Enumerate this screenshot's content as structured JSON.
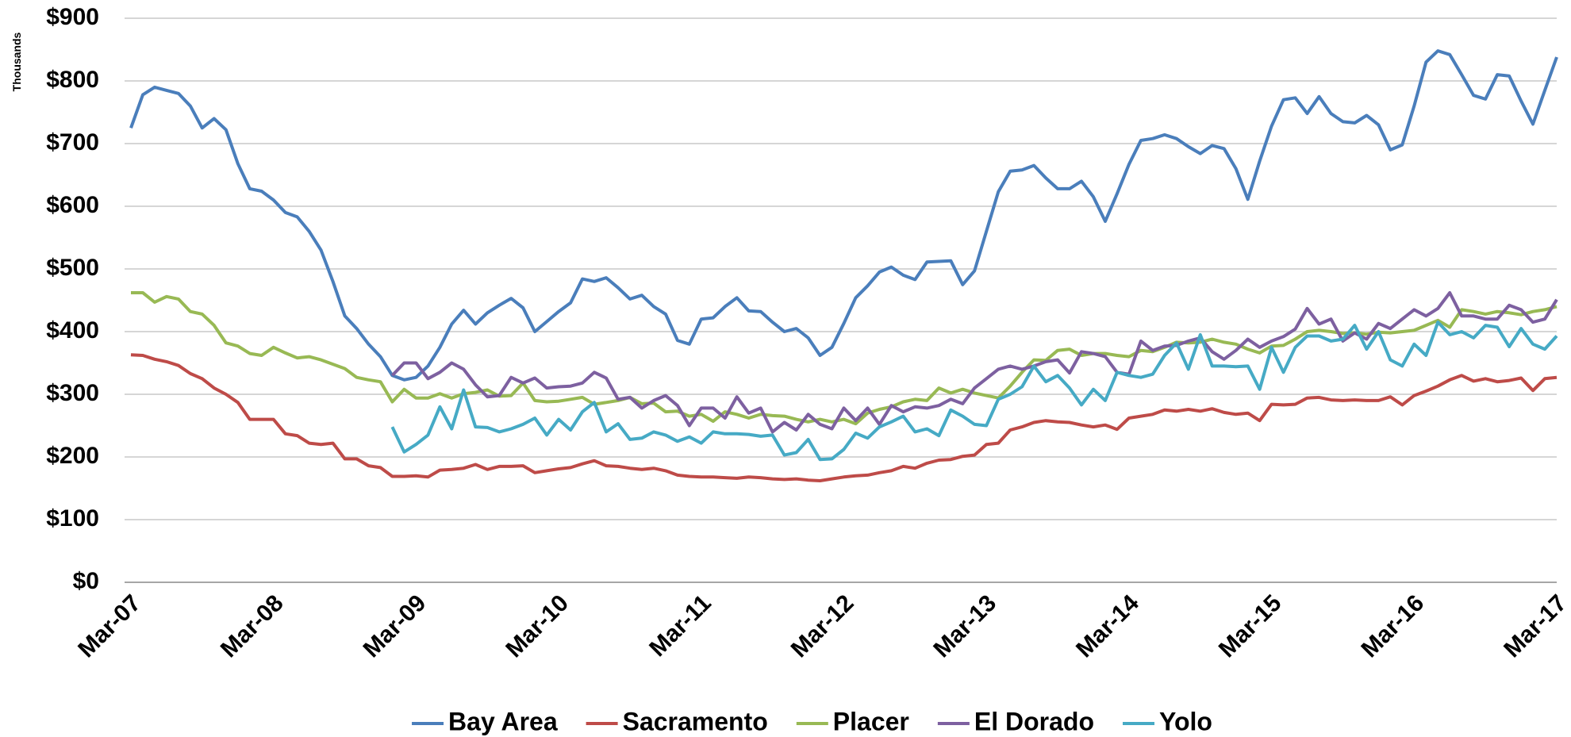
{
  "chart_data": {
    "type": "line",
    "y_axis_label": "Thousands",
    "categories": [
      "Mar-07",
      null,
      null,
      null,
      null,
      null,
      null,
      null,
      null,
      null,
      null,
      null,
      "Mar-08",
      null,
      null,
      null,
      null,
      null,
      null,
      null,
      null,
      null,
      null,
      null,
      "Mar-09",
      null,
      null,
      null,
      null,
      null,
      null,
      null,
      null,
      null,
      null,
      null,
      "Mar-10",
      null,
      null,
      null,
      null,
      null,
      null,
      null,
      null,
      null,
      null,
      null,
      "Mar-11",
      null,
      null,
      null,
      null,
      null,
      null,
      null,
      null,
      null,
      null,
      null,
      "Mar-12",
      null,
      null,
      null,
      null,
      null,
      null,
      null,
      null,
      null,
      null,
      null,
      "Mar-13",
      null,
      null,
      null,
      null,
      null,
      null,
      null,
      null,
      null,
      null,
      null,
      "Mar-14",
      null,
      null,
      null,
      null,
      null,
      null,
      null,
      null,
      null,
      null,
      null,
      "Mar-15",
      null,
      null,
      null,
      null,
      null,
      null,
      null,
      null,
      null,
      null,
      null,
      "Mar-16",
      null,
      null,
      null,
      null,
      null,
      null,
      null,
      null,
      null,
      null,
      null,
      "Mar-17"
    ],
    "ylim": [
      0,
      900
    ],
    "yticks": [
      {
        "value": 0,
        "label": "$0"
      },
      {
        "value": 100,
        "label": "$100"
      },
      {
        "value": 200,
        "label": "$200"
      },
      {
        "value": 300,
        "label": "$300"
      },
      {
        "value": 400,
        "label": "$400"
      },
      {
        "value": 500,
        "label": "$500"
      },
      {
        "value": 600,
        "label": "$600"
      },
      {
        "value": 700,
        "label": "$700"
      },
      {
        "value": 800,
        "label": "$800"
      },
      {
        "value": 900,
        "label": "$900"
      }
    ],
    "grid": true,
    "legend": "bottom",
    "series": [
      {
        "name": "Bay Area",
        "color": "#4a7ebb",
        "values": [
          725,
          778,
          790,
          785,
          780,
          760,
          725,
          740,
          722,
          668,
          628,
          624,
          610,
          590,
          583,
          560,
          530,
          480,
          425,
          405,
          380,
          360,
          330,
          323,
          327,
          345,
          375,
          412,
          434,
          412,
          430,
          442,
          453,
          438,
          400,
          416,
          432,
          446,
          484,
          480,
          486,
          470,
          452,
          458,
          440,
          428,
          386,
          380,
          420,
          422,
          440,
          454,
          433,
          432,
          415,
          400,
          405,
          390,
          362,
          375,
          413,
          454,
          473,
          495,
          503,
          490,
          483,
          511,
          512,
          513,
          475,
          497,
          560,
          623,
          656,
          658,
          665,
          645,
          628,
          628,
          640,
          615,
          576,
          620,
          667,
          705,
          708,
          714,
          708,
          695,
          684,
          697,
          692,
          660,
          611,
          672,
          728,
          770,
          773,
          748,
          775,
          748,
          735,
          733,
          745,
          730,
          690,
          698,
          760,
          830,
          848,
          842,
          810,
          777,
          771,
          810,
          808,
          768,
          731,
          785,
          838
        ]
      },
      {
        "name": "Sacramento",
        "color": "#be4b48",
        "values": [
          363,
          362,
          356,
          352,
          346,
          333,
          325,
          310,
          300,
          287,
          260,
          260,
          260,
          237,
          234,
          222,
          220,
          222,
          197,
          197,
          186,
          183,
          169,
          169,
          170,
          168,
          179,
          180,
          182,
          188,
          180,
          185,
          185,
          186,
          175,
          178,
          181,
          183,
          189,
          194,
          186,
          185,
          182,
          180,
          182,
          178,
          171,
          169,
          168,
          168,
          167,
          166,
          168,
          167,
          165,
          164,
          165,
          163,
          162,
          165,
          168,
          170,
          171,
          175,
          178,
          185,
          182,
          190,
          195,
          196,
          201,
          203,
          220,
          222,
          243,
          248,
          255,
          258,
          256,
          255,
          251,
          248,
          251,
          244,
          262,
          265,
          268,
          275,
          273,
          276,
          273,
          277,
          271,
          268,
          270,
          258,
          284,
          283,
          284,
          294,
          295,
          291,
          290,
          291,
          290,
          290,
          296,
          283,
          298,
          305,
          313,
          323,
          330,
          321,
          325,
          320,
          322,
          326,
          306,
          325,
          327
        ]
      },
      {
        "name": "Placer",
        "color": "#98b954",
        "values": [
          462,
          462,
          447,
          456,
          452,
          432,
          428,
          410,
          382,
          377,
          365,
          362,
          375,
          366,
          358,
          360,
          355,
          348,
          341,
          327,
          323,
          320,
          288,
          308,
          294,
          294,
          301,
          294,
          301,
          303,
          307,
          297,
          298,
          318,
          290,
          288,
          289,
          292,
          295,
          284,
          287,
          290,
          295,
          285,
          286,
          272,
          273,
          265,
          268,
          257,
          272,
          268,
          262,
          268,
          266,
          265,
          260,
          256,
          260,
          256,
          260,
          253,
          270,
          276,
          280,
          288,
          292,
          290,
          310,
          302,
          308,
          302,
          298,
          294,
          313,
          335,
          355,
          354,
          370,
          372,
          362,
          365,
          365,
          362,
          360,
          370,
          368,
          375,
          383,
          382,
          383,
          388,
          383,
          380,
          372,
          366,
          377,
          378,
          388,
          400,
          402,
          400,
          397,
          398,
          396,
          399,
          398,
          400,
          402,
          410,
          418,
          407,
          435,
          432,
          428,
          432,
          430,
          427,
          432,
          435,
          440
        ]
      },
      {
        "name": "El Dorado",
        "color": "#7d60a0",
        "values": [
          null,
          null,
          null,
          null,
          null,
          null,
          null,
          null,
          null,
          null,
          null,
          null,
          null,
          null,
          null,
          null,
          null,
          null,
          null,
          null,
          null,
          null,
          330,
          350,
          350,
          325,
          335,
          350,
          340,
          315,
          296,
          298,
          327,
          318,
          326,
          310,
          312,
          313,
          318,
          335,
          326,
          292,
          295,
          278,
          290,
          298,
          282,
          250,
          278,
          278,
          262,
          296,
          270,
          278,
          240,
          255,
          243,
          268,
          252,
          245,
          278,
          258,
          278,
          252,
          282,
          272,
          280,
          278,
          282,
          292,
          285,
          310,
          325,
          340,
          345,
          340,
          345,
          352,
          355,
          334,
          368,
          365,
          360,
          335,
          332,
          385,
          370,
          377,
          378,
          385,
          390,
          368,
          356,
          370,
          388,
          375,
          385,
          392,
          404,
          437,
          412,
          420,
          385,
          398,
          388,
          413,
          405,
          420,
          435,
          425,
          437,
          462,
          425,
          425,
          420,
          420,
          442,
          435,
          415,
          420,
          451
        ]
      },
      {
        "name": "Yolo",
        "color": "#46aac5",
        "values": [
          null,
          null,
          null,
          null,
          null,
          null,
          null,
          null,
          null,
          null,
          null,
          null,
          null,
          null,
          null,
          null,
          null,
          null,
          null,
          null,
          null,
          null,
          248,
          208,
          220,
          235,
          280,
          245,
          307,
          248,
          247,
          240,
          245,
          252,
          262,
          235,
          260,
          243,
          272,
          287,
          240,
          253,
          228,
          230,
          240,
          235,
          225,
          232,
          222,
          240,
          237,
          237,
          236,
          233,
          235,
          203,
          207,
          228,
          196,
          197,
          212,
          238,
          230,
          248,
          256,
          265,
          240,
          245,
          234,
          275,
          265,
          252,
          250,
          292,
          300,
          312,
          345,
          320,
          330,
          310,
          283,
          308,
          290,
          335,
          330,
          327,
          332,
          362,
          382,
          340,
          395,
          345,
          345,
          344,
          345,
          308,
          375,
          335,
          375,
          393,
          393,
          385,
          388,
          410,
          372,
          400,
          355,
          345,
          380,
          362,
          415,
          395,
          400,
          390,
          410,
          407,
          376,
          405,
          380,
          372,
          393
        ]
      }
    ]
  }
}
